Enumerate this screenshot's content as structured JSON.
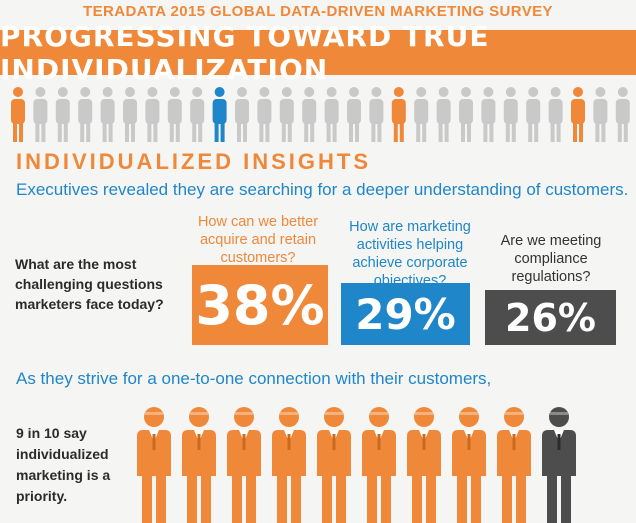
{
  "header": {
    "survey_title": "TERADATA 2015 GLOBAL DATA-DRIVEN MARKETING SURVEY",
    "banner_title": "PROGRESSING TOWARD TRUE INDIVIDUALIZATION"
  },
  "section": {
    "title": "INDIVIDUALIZED INSIGHTS",
    "lead": "Executives revealed they are searching for a deeper understanding of customers."
  },
  "question": {
    "text": "What are the most challenging questions marketers face today?"
  },
  "stats": [
    {
      "question": "How can we better acquire and retain customers?",
      "value": "38%",
      "color": "#f0883a"
    },
    {
      "question": "How are marketing activities helping achieve corporate objectives?",
      "value": "29%",
      "color": "#1f86c9"
    },
    {
      "question": "Are we meeting compliance regulations?",
      "value": "26%",
      "color": "#4d4d4d"
    }
  ],
  "connection": {
    "lead": "As they strive for a one-to-one connection with their customers,",
    "claim": "9 in 10 say individualized marketing is a priority.",
    "people_total": 10,
    "people_highlighted": 9
  },
  "colors": {
    "orange": "#f0883a",
    "blue": "#1f86c9",
    "gray": "#4d4d4d",
    "crowd_gray": "#c9c9c9"
  },
  "icons": [
    "person-icon"
  ]
}
